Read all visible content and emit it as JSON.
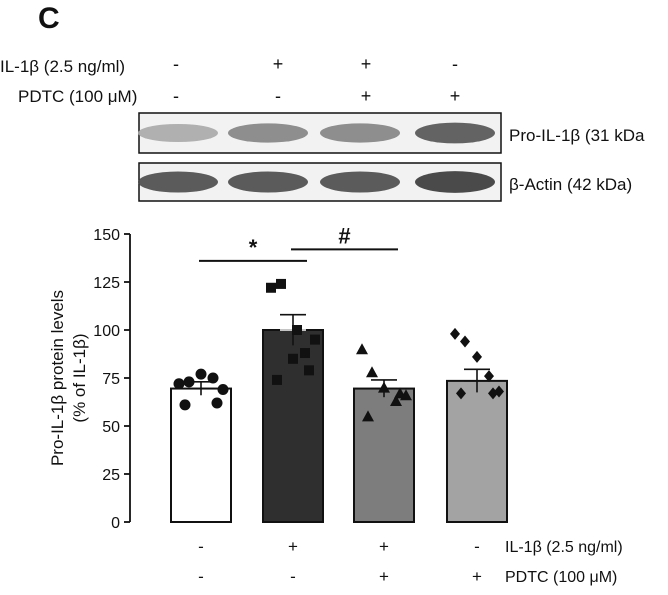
{
  "panel_label": "C",
  "blot": {
    "rows": [
      {
        "label": "IL-1β  (2.5 ng/ml)",
        "signs": [
          "-",
          "+",
          "+",
          "-"
        ]
      },
      {
        "label": "PDTC (100 μM)",
        "signs": [
          "-",
          "-",
          "+",
          "+"
        ]
      }
    ],
    "bands": [
      {
        "label": "Pro-IL-1β (31 kDa",
        "intensity": [
          0.35,
          0.55,
          0.55,
          0.8
        ]
      },
      {
        "label": "β-Actin (42 kDa)",
        "intensity": [
          0.85,
          0.85,
          0.85,
          0.95
        ]
      }
    ]
  },
  "chart_data": {
    "type": "bar",
    "ylabel": "Pro-IL-1β protein levels\n(% of IL-1β)",
    "ylabel_lines": [
      "Pro-IL-1β protein levels",
      "(% of IL-1β)"
    ],
    "ylim": [
      0,
      150
    ],
    "yticks": [
      0,
      25,
      50,
      75,
      100,
      125,
      150
    ],
    "categories": [
      "-/-",
      "+/-",
      "+/+",
      "-/+"
    ],
    "values": [
      69.5,
      100,
      69.5,
      73.5
    ],
    "sem": [
      3.5,
      8,
      4.5,
      6
    ],
    "bar_colors": [
      "#ffffff",
      "#2f2f2f",
      "#7d7d7d",
      "#a3a3a3"
    ],
    "marker_shapes": [
      "circle",
      "square",
      "triangle",
      "diamond"
    ],
    "points": [
      [
        72,
        73,
        77,
        75,
        69,
        62,
        61
      ],
      [
        122,
        124,
        85,
        88,
        95,
        79,
        74,
        100
      ],
      [
        90,
        78,
        70,
        63,
        66,
        67,
        55
      ],
      [
        98,
        94,
        86,
        76,
        68,
        67,
        67
      ]
    ],
    "significance": [
      {
        "label": "*",
        "from": 0,
        "to": 1,
        "y": 136
      },
      {
        "label": "#",
        "from": 1,
        "to": 2,
        "y": 142
      }
    ],
    "condition_rows": [
      {
        "label": "IL-1β (2.5 ng/ml)",
        "signs": [
          "-",
          "+",
          "+",
          "-"
        ]
      },
      {
        "label": "PDTC (100 μM)",
        "signs": [
          "-",
          "-",
          "+",
          "+"
        ]
      }
    ],
    "grid": false,
    "legend": "none"
  }
}
